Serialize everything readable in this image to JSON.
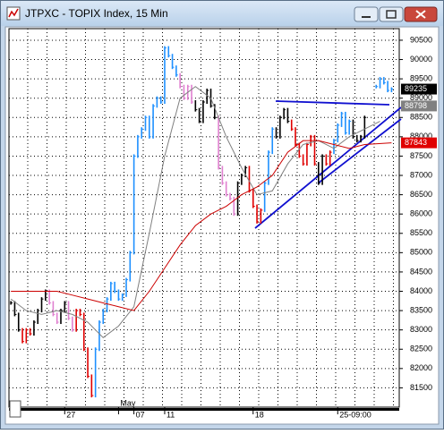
{
  "chart_data": {
    "type": "line",
    "title": "JTPXC - TOPIX Index, 15 Min",
    "ylim": [
      81000,
      90800
    ],
    "yticks": [
      90500,
      90000,
      89500,
      89000,
      88500,
      88000,
      87500,
      87000,
      86500,
      86000,
      85500,
      85000,
      84500,
      84000,
      83500,
      83000,
      82500,
      82000,
      81500
    ],
    "xlim": [
      -0.5,
      101
    ],
    "xticks": [
      {
        "value": 14,
        "label": "27"
      },
      {
        "value": 28,
        "label": "May"
      },
      {
        "value": 32,
        "label": "07"
      },
      {
        "value": 40,
        "label": "11"
      },
      {
        "value": 63,
        "label": "18"
      },
      {
        "value": 85,
        "label": "25-09:00"
      }
    ],
    "grid": true,
    "series": [
      {
        "values": [
          83700,
          83400,
          83000,
          82700,
          83000,
          82900,
          83200,
          83500,
          83800,
          84000,
          83700,
          83400,
          83200,
          83500,
          83700,
          83300,
          83000,
          83500,
          83400,
          82500,
          81800,
          81300,
          82500,
          83200,
          83500,
          83800,
          84200,
          84000,
          83800,
          83900,
          84300,
          85000,
          87500,
          88000,
          88200,
          88500,
          88000,
          88800,
          89000,
          88900,
          90300,
          90100,
          89800,
          89600,
          89300,
          89000,
          89300,
          88900,
          88700,
          88400,
          88900,
          89200,
          88800,
          88500,
          87200,
          86800,
          86500,
          86400,
          86000,
          86800,
          87000,
          87200,
          86600,
          86200,
          85800,
          86100,
          86800,
          87600,
          88200,
          88000,
          88500,
          88700,
          88400,
          88200,
          87800,
          87500,
          87300,
          87800,
          88000,
          87300,
          86800,
          87500,
          87300,
          87600,
          87900,
          88300,
          88600,
          88100,
          88400,
          88000,
          87900,
          88000,
          88500,
          null,
          null,
          89300,
          89500,
          89400,
          89200,
          89235
        ],
        "colors": [
          "#000000",
          "#000000",
          "#000000",
          "#e00000",
          "#e00000",
          "#e00000",
          "#000000",
          "#000000",
          "#000000",
          "#000000",
          "#e080d0",
          "#e080d0",
          "#e080d0",
          "#000000",
          "#000000",
          "#e080d0",
          "#e080d0",
          "#e00000",
          "#e00000",
          "#e00000",
          "#e00000",
          "#e00000",
          "#1e90ff",
          "#1e90ff",
          "#1e90ff",
          "#1e90ff",
          "#1e90ff",
          "#1e90ff",
          "#1e90ff",
          "#1e90ff",
          "#1e90ff",
          "#1e90ff",
          "#1e90ff",
          "#1e90ff",
          "#1e90ff",
          "#1e90ff",
          "#1e90ff",
          "#1e90ff",
          "#1e90ff",
          "#1e90ff",
          "#1e90ff",
          "#1e90ff",
          "#1e90ff",
          "#1e90ff",
          "#e080d0",
          "#e080d0",
          "#e080d0",
          "#e080d0",
          "#000000",
          "#000000",
          "#000000",
          "#000000",
          "#000000",
          "#000000",
          "#e080d0",
          "#e080d0",
          "#e080d0",
          "#e080d0",
          "#e080d0",
          "#000000",
          "#000000",
          "#000000",
          "#e00000",
          "#e00000",
          "#e00000",
          "#e00000",
          "#1e90ff",
          "#1e90ff",
          "#1e90ff",
          "#000000",
          "#000000",
          "#000000",
          "#000000",
          "#e00000",
          "#e00000",
          "#e00000",
          "#e00000",
          "#e00000",
          "#e00000",
          "#e00000",
          "#000000",
          "#000000",
          "#e00000",
          "#e00000",
          "#1e90ff",
          "#1e90ff",
          "#1e90ff",
          "#1e90ff",
          "#1e90ff",
          "#000000",
          "#000000",
          "#000000",
          "#000000",
          "#000000",
          "#000000",
          "#1e90ff",
          "#1e90ff",
          "#1e90ff",
          "#1e90ff",
          "#1e90ff"
        ]
      },
      {
        "color": "#808080",
        "x": [
          0,
          4,
          8,
          12,
          16,
          20,
          24,
          28,
          32,
          36,
          40,
          44,
          48,
          52,
          56,
          60,
          64,
          68,
          72,
          76,
          80,
          84,
          88,
          92,
          96
        ],
        "values": [
          83800,
          83500,
          83400,
          83500,
          83400,
          83200,
          82800,
          83100,
          83600,
          85500,
          87500,
          89000,
          89300,
          89000,
          88000,
          87200,
          86500,
          86600,
          87300,
          87800,
          87900,
          87700,
          88000,
          88200,
          88400
        ]
      },
      {
        "color": "#cc0000",
        "x": [
          0,
          4,
          8,
          12,
          16,
          20,
          24,
          28,
          32,
          36,
          40,
          44,
          48,
          52,
          56,
          60,
          64,
          68,
          72,
          76,
          80,
          84,
          88,
          92,
          99
        ],
        "values": [
          84000,
          84000,
          84000,
          84000,
          83900,
          83800,
          83700,
          83600,
          83500,
          84000,
          84600,
          85200,
          85700,
          86000,
          86200,
          86500,
          86700,
          87000,
          87600,
          87900,
          87900,
          87800,
          87700,
          87800,
          87843
        ]
      }
    ],
    "price_tags": [
      {
        "value": 89235,
        "color": "#000000"
      },
      {
        "value": 88798,
        "color": "#808080"
      },
      {
        "value": 87843,
        "color": "#e00000"
      }
    ]
  }
}
